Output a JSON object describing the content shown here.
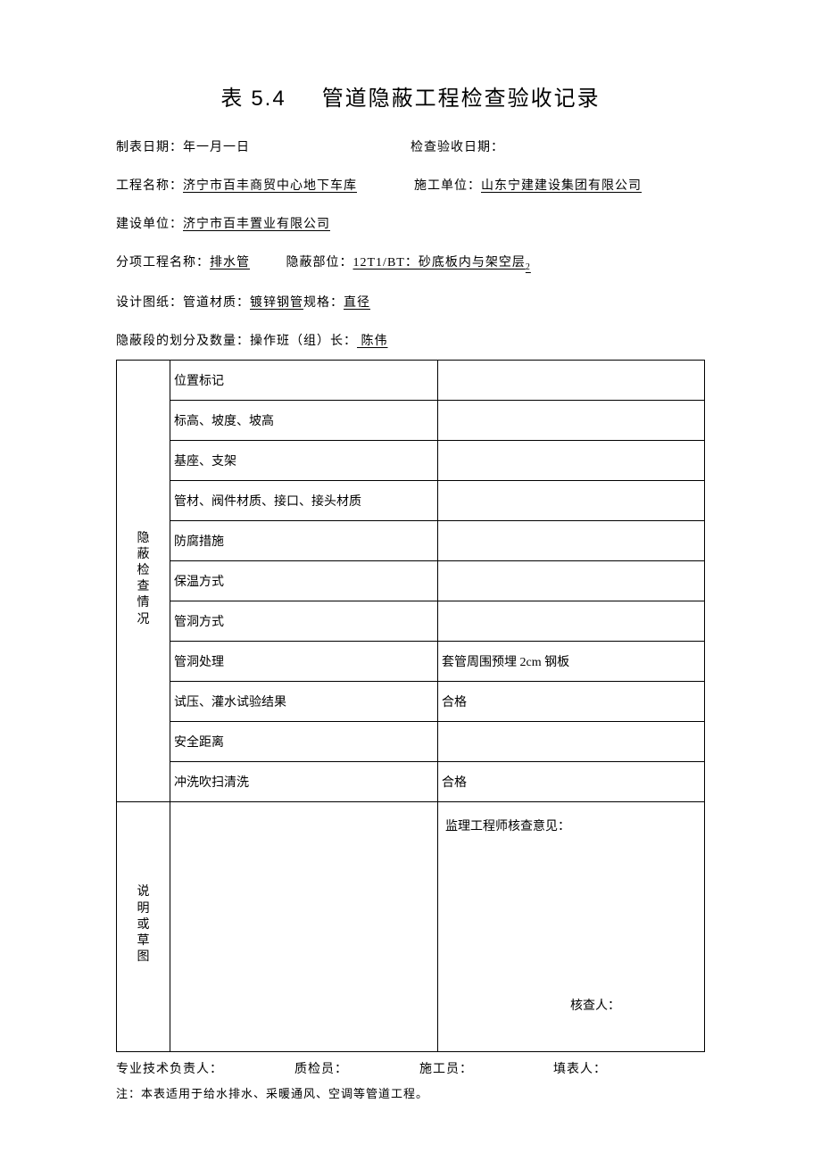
{
  "title": {
    "prefix": "表",
    "number": "5.4",
    "main": "管道隐蔽工程检查验收记录"
  },
  "meta": {
    "line1_left_label": "制表日期：",
    "line1_left_value": "年一月一日",
    "line1_right_label": "检查验收日期：",
    "line2_left_label": "工程名称：",
    "line2_left_value": "济宁市百丰商贸中心地下车库",
    "line2_right_label": "施工单位：",
    "line2_right_value": "山东宁建建设集团有限公司",
    "line3_label": "建设单位：",
    "line3_value": "济宁市百丰置业有限公司",
    "line4_label1": "分项工程名称：",
    "line4_value1": "排水管",
    "line4_label2": "隐蔽部位：",
    "line4_value2": "12T1/BT：砂底板内与架空层",
    "line4_sub": "2",
    "line5_label1": "设计图纸：管道材质：",
    "line5_value1": "镀锌钢管",
    "line5_label2": "规格：",
    "line5_value2": "直径",
    "line6_label": "隐蔽段的划分及数量：操作班（组）长：",
    "line6_value": " 陈伟 "
  },
  "table": {
    "category_label": "隐蔽检查情况",
    "rows": [
      {
        "item": "位置标记",
        "value": ""
      },
      {
        "item": "标高、坡度、坡高",
        "value": ""
      },
      {
        "item": "基座、支架",
        "value": ""
      },
      {
        "item": "管材、阀件材质、接口、接头材质",
        "value": ""
      },
      {
        "item": "防腐措施",
        "value": ""
      },
      {
        "item": "保温方式",
        "value": ""
      },
      {
        "item": "管洞方式",
        "value": ""
      },
      {
        "item": "管洞处理",
        "value": "套管周围预埋 2cm 钢板"
      },
      {
        "item": "试压、灌水试验结果",
        "value": "合格"
      },
      {
        "item": "安全距离",
        "value": ""
      },
      {
        "item": "冲洗吹扫清洗",
        "value": "合格"
      }
    ],
    "notes_label": "说明或草图",
    "reviewer_opinion_label": "监理工程师核查意见：",
    "reviewer_signer_label": "核查人："
  },
  "signatures": {
    "s1": "专业技术负责人：",
    "s2": "质检员：",
    "s3": "施工员：",
    "s4": "填表人："
  },
  "footnote": "注：本表适用于给水排水、采暖通风、空调等管道工程。"
}
